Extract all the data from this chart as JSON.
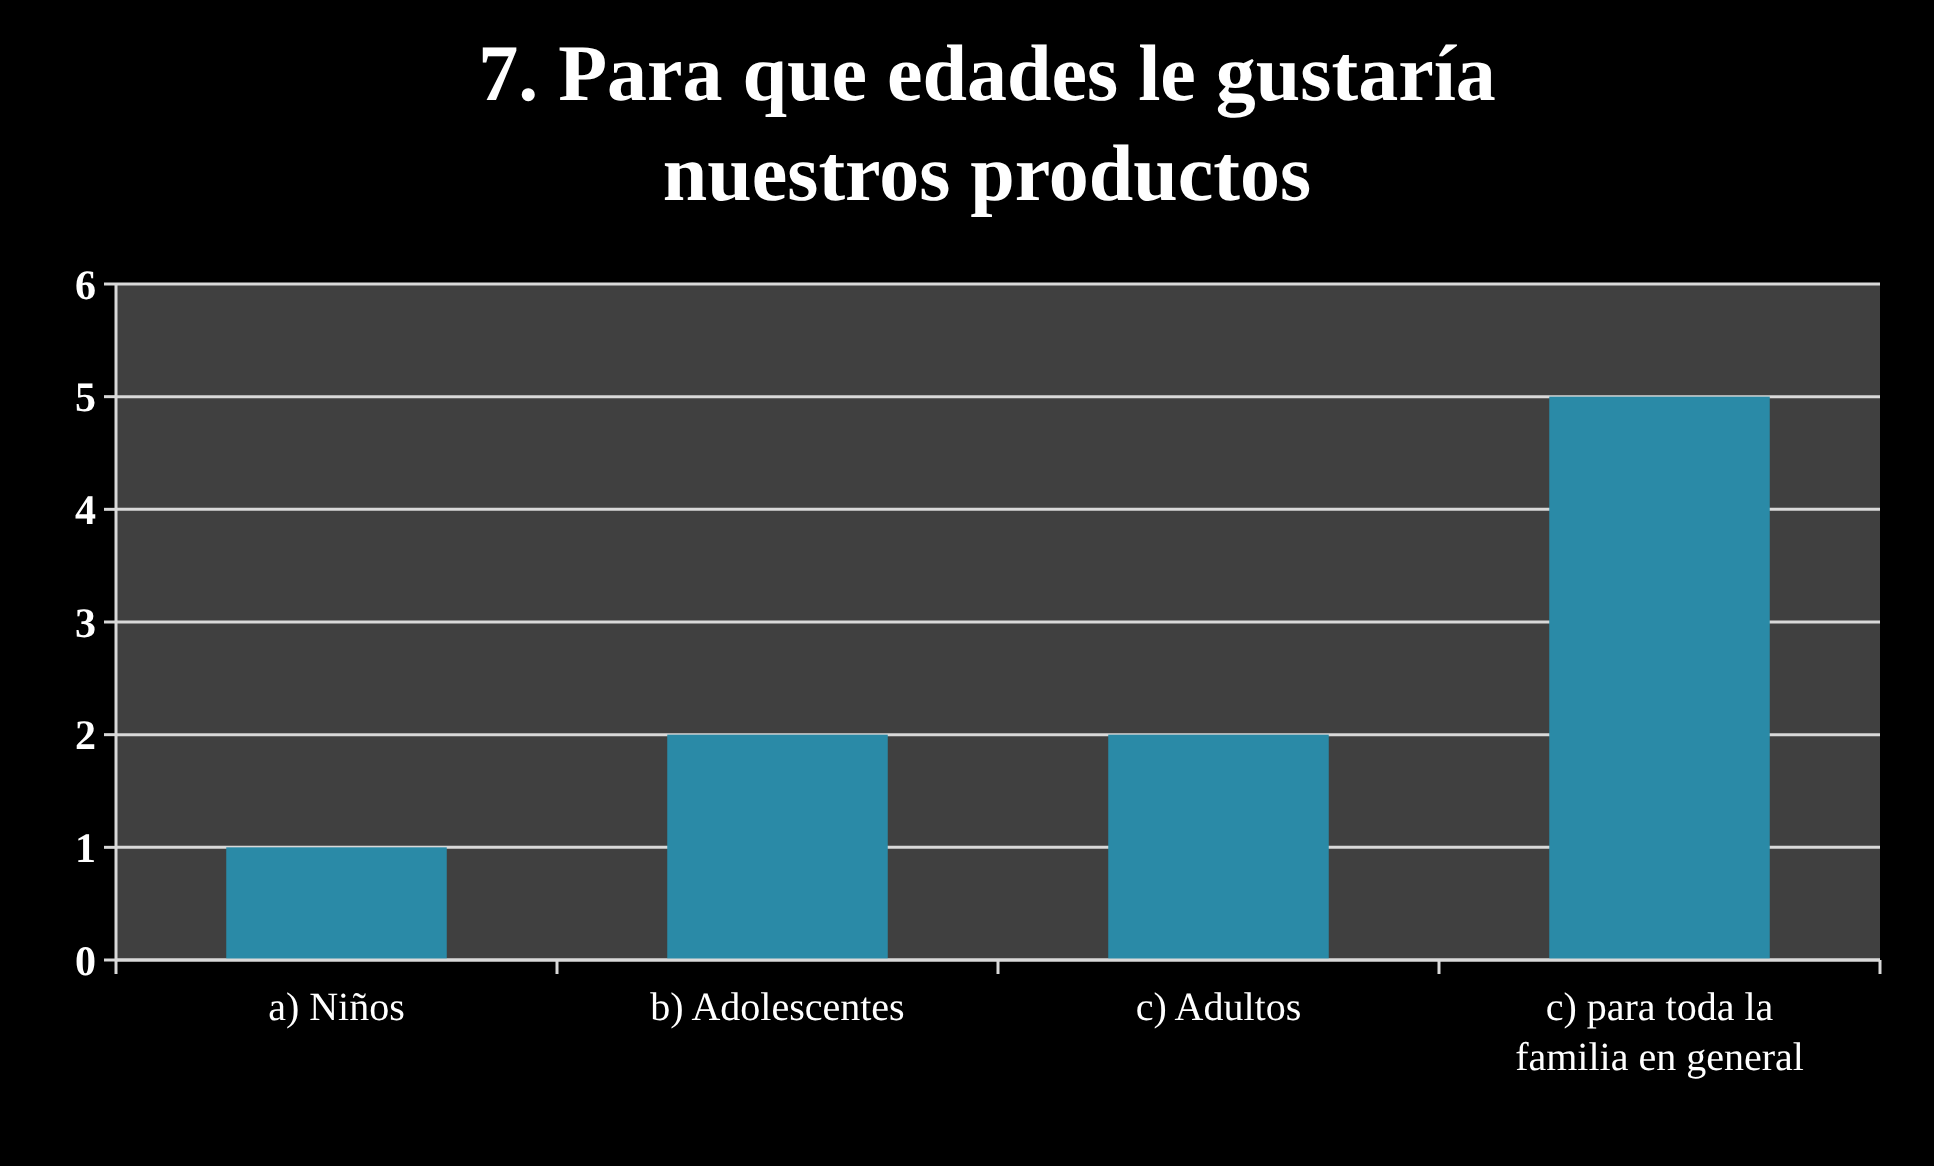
{
  "chart_data": {
    "type": "bar",
    "title": "7. Para que edades le gustaría\nnuestros productos",
    "categories": [
      "a) Niños",
      "b) Adolescentes",
      "c) Adultos",
      "c) para toda la familia en general"
    ],
    "values": [
      1,
      2,
      2,
      5
    ],
    "color": "#2a8aa7",
    "ylim": [
      0,
      6
    ],
    "yticks": [
      0,
      1,
      2,
      3,
      4,
      5,
      6
    ],
    "grid": "y"
  }
}
